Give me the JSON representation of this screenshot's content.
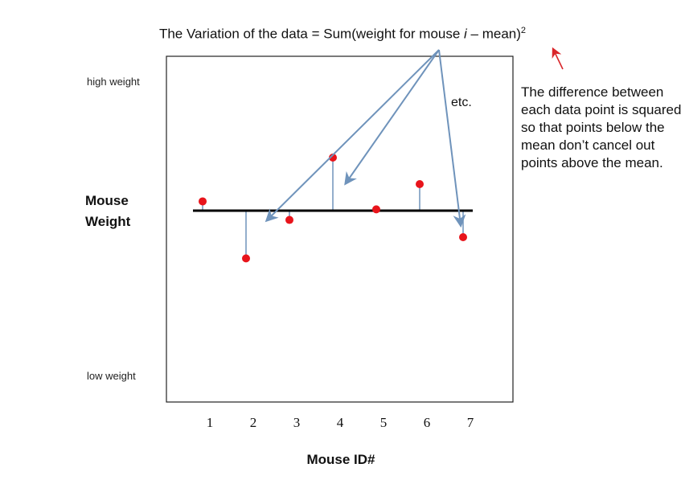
{
  "title": {
    "prefix": "The Variation of the data = Sum(weight for mouse ",
    "index": "i",
    "suffix": " – mean)",
    "superscript": "2"
  },
  "y_axis": {
    "high_label": "high weight",
    "low_label": "low weight",
    "label_line1": "Mouse",
    "label_line2": "Weight"
  },
  "x_axis": {
    "label": "Mouse ID#",
    "ticks": [
      "1",
      "2",
      "3",
      "4",
      "5",
      "6",
      "7"
    ]
  },
  "annotation_etc": "etc.",
  "note": "The difference between each data point is squared so that points below the mean don’t cancel out points above the mean.",
  "colors": {
    "point": "#e8141b",
    "mean_line": "#000000",
    "arrow": "#6f93bb",
    "red_arrow": "#d9262a"
  },
  "chart_data": {
    "type": "scatter",
    "x": [
      1,
      2,
      3,
      4,
      5,
      6,
      7
    ],
    "mean": 0,
    "y": [
      0.35,
      -1.8,
      -0.35,
      2.0,
      0.05,
      1.0,
      -1.0
    ]
  }
}
